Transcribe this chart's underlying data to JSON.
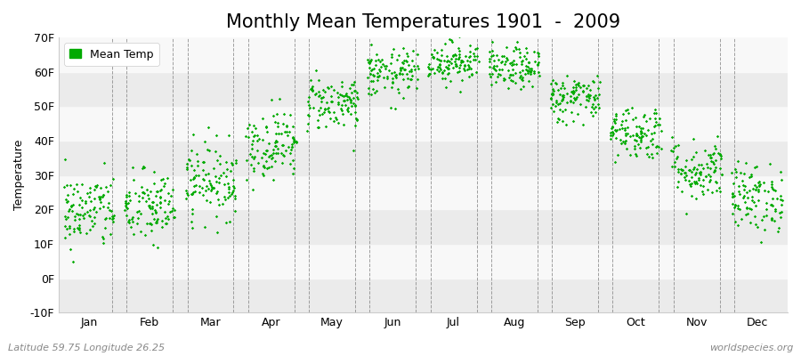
{
  "title": "Monthly Mean Temperatures 1901  -  2009",
  "ylabel": "Temperature",
  "ylim": [
    -10,
    70
  ],
  "yticks": [
    -10,
    0,
    10,
    20,
    30,
    40,
    50,
    60,
    70
  ],
  "ytick_labels": [
    "-10F",
    "0F",
    "10F",
    "20F",
    "30F",
    "40F",
    "50F",
    "60F",
    "70F"
  ],
  "months": [
    "Jan",
    "Feb",
    "Mar",
    "Apr",
    "May",
    "Jun",
    "Jul",
    "Aug",
    "Sep",
    "Oct",
    "Nov",
    "Dec"
  ],
  "month_means_f": [
    19.5,
    20.5,
    28.5,
    39.0,
    51.0,
    59.5,
    63.0,
    61.0,
    52.5,
    42.5,
    31.5,
    23.5
  ],
  "month_stds_f": [
    5.5,
    5.5,
    5.5,
    5.0,
    4.0,
    3.5,
    3.0,
    3.0,
    3.5,
    4.0,
    4.5,
    5.0
  ],
  "n_years": 109,
  "marker_color": "#00aa00",
  "marker_size": 3,
  "background_color": "#ffffff",
  "plot_background_light": "#ebebeb",
  "plot_background_dark": "#f8f8f8",
  "legend_label": "Mean Temp",
  "subtitle_left": "Latitude 59.75 Longitude 26.25",
  "subtitle_right": "worldspecies.org",
  "title_fontsize": 15,
  "axis_label_fontsize": 9,
  "tick_fontsize": 9,
  "dashed_line_color": "#888888",
  "seed": 42
}
